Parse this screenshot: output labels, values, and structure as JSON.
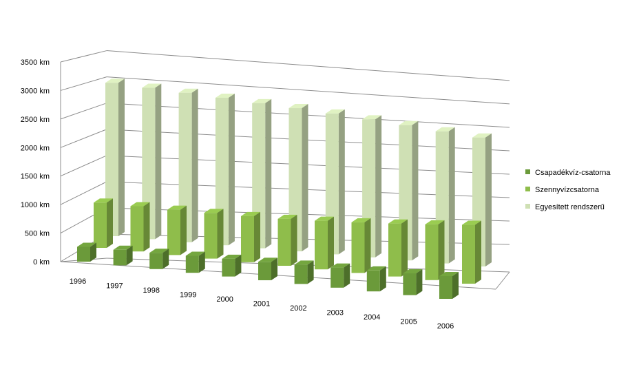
{
  "chart_data": {
    "type": "bar",
    "categories": [
      "1996",
      "1997",
      "1998",
      "1999",
      "2000",
      "2001",
      "2002",
      "2003",
      "2004",
      "2005",
      "2006"
    ],
    "series": [
      {
        "name": "Csapadékvíz-csatorna",
        "color": "#6b9a3a",
        "values": [
          330,
          350,
          370,
          390,
          410,
          430,
          455,
          480,
          505,
          530,
          560
        ]
      },
      {
        "name": "Szennyvízcsatorna",
        "color": "#8fbd4b",
        "values": [
          1000,
          1010,
          1020,
          1040,
          1060,
          1090,
          1140,
          1200,
          1270,
          1350,
          1440
        ]
      },
      {
        "name": "Egyesített rendszerű",
        "color": "#cfe0b4",
        "values": [
          3200,
          3190,
          3180,
          3170,
          3150,
          3140,
          3120,
          3090,
          3060,
          3020,
          2980
        ]
      }
    ],
    "y_ticks": [
      "0 km",
      "500 km",
      "1000 km",
      "1500 km",
      "2000 km",
      "2500 km",
      "3000 km",
      "3500 km"
    ],
    "ylim": [
      0,
      3500
    ],
    "grid": true,
    "legend_position": "right"
  }
}
